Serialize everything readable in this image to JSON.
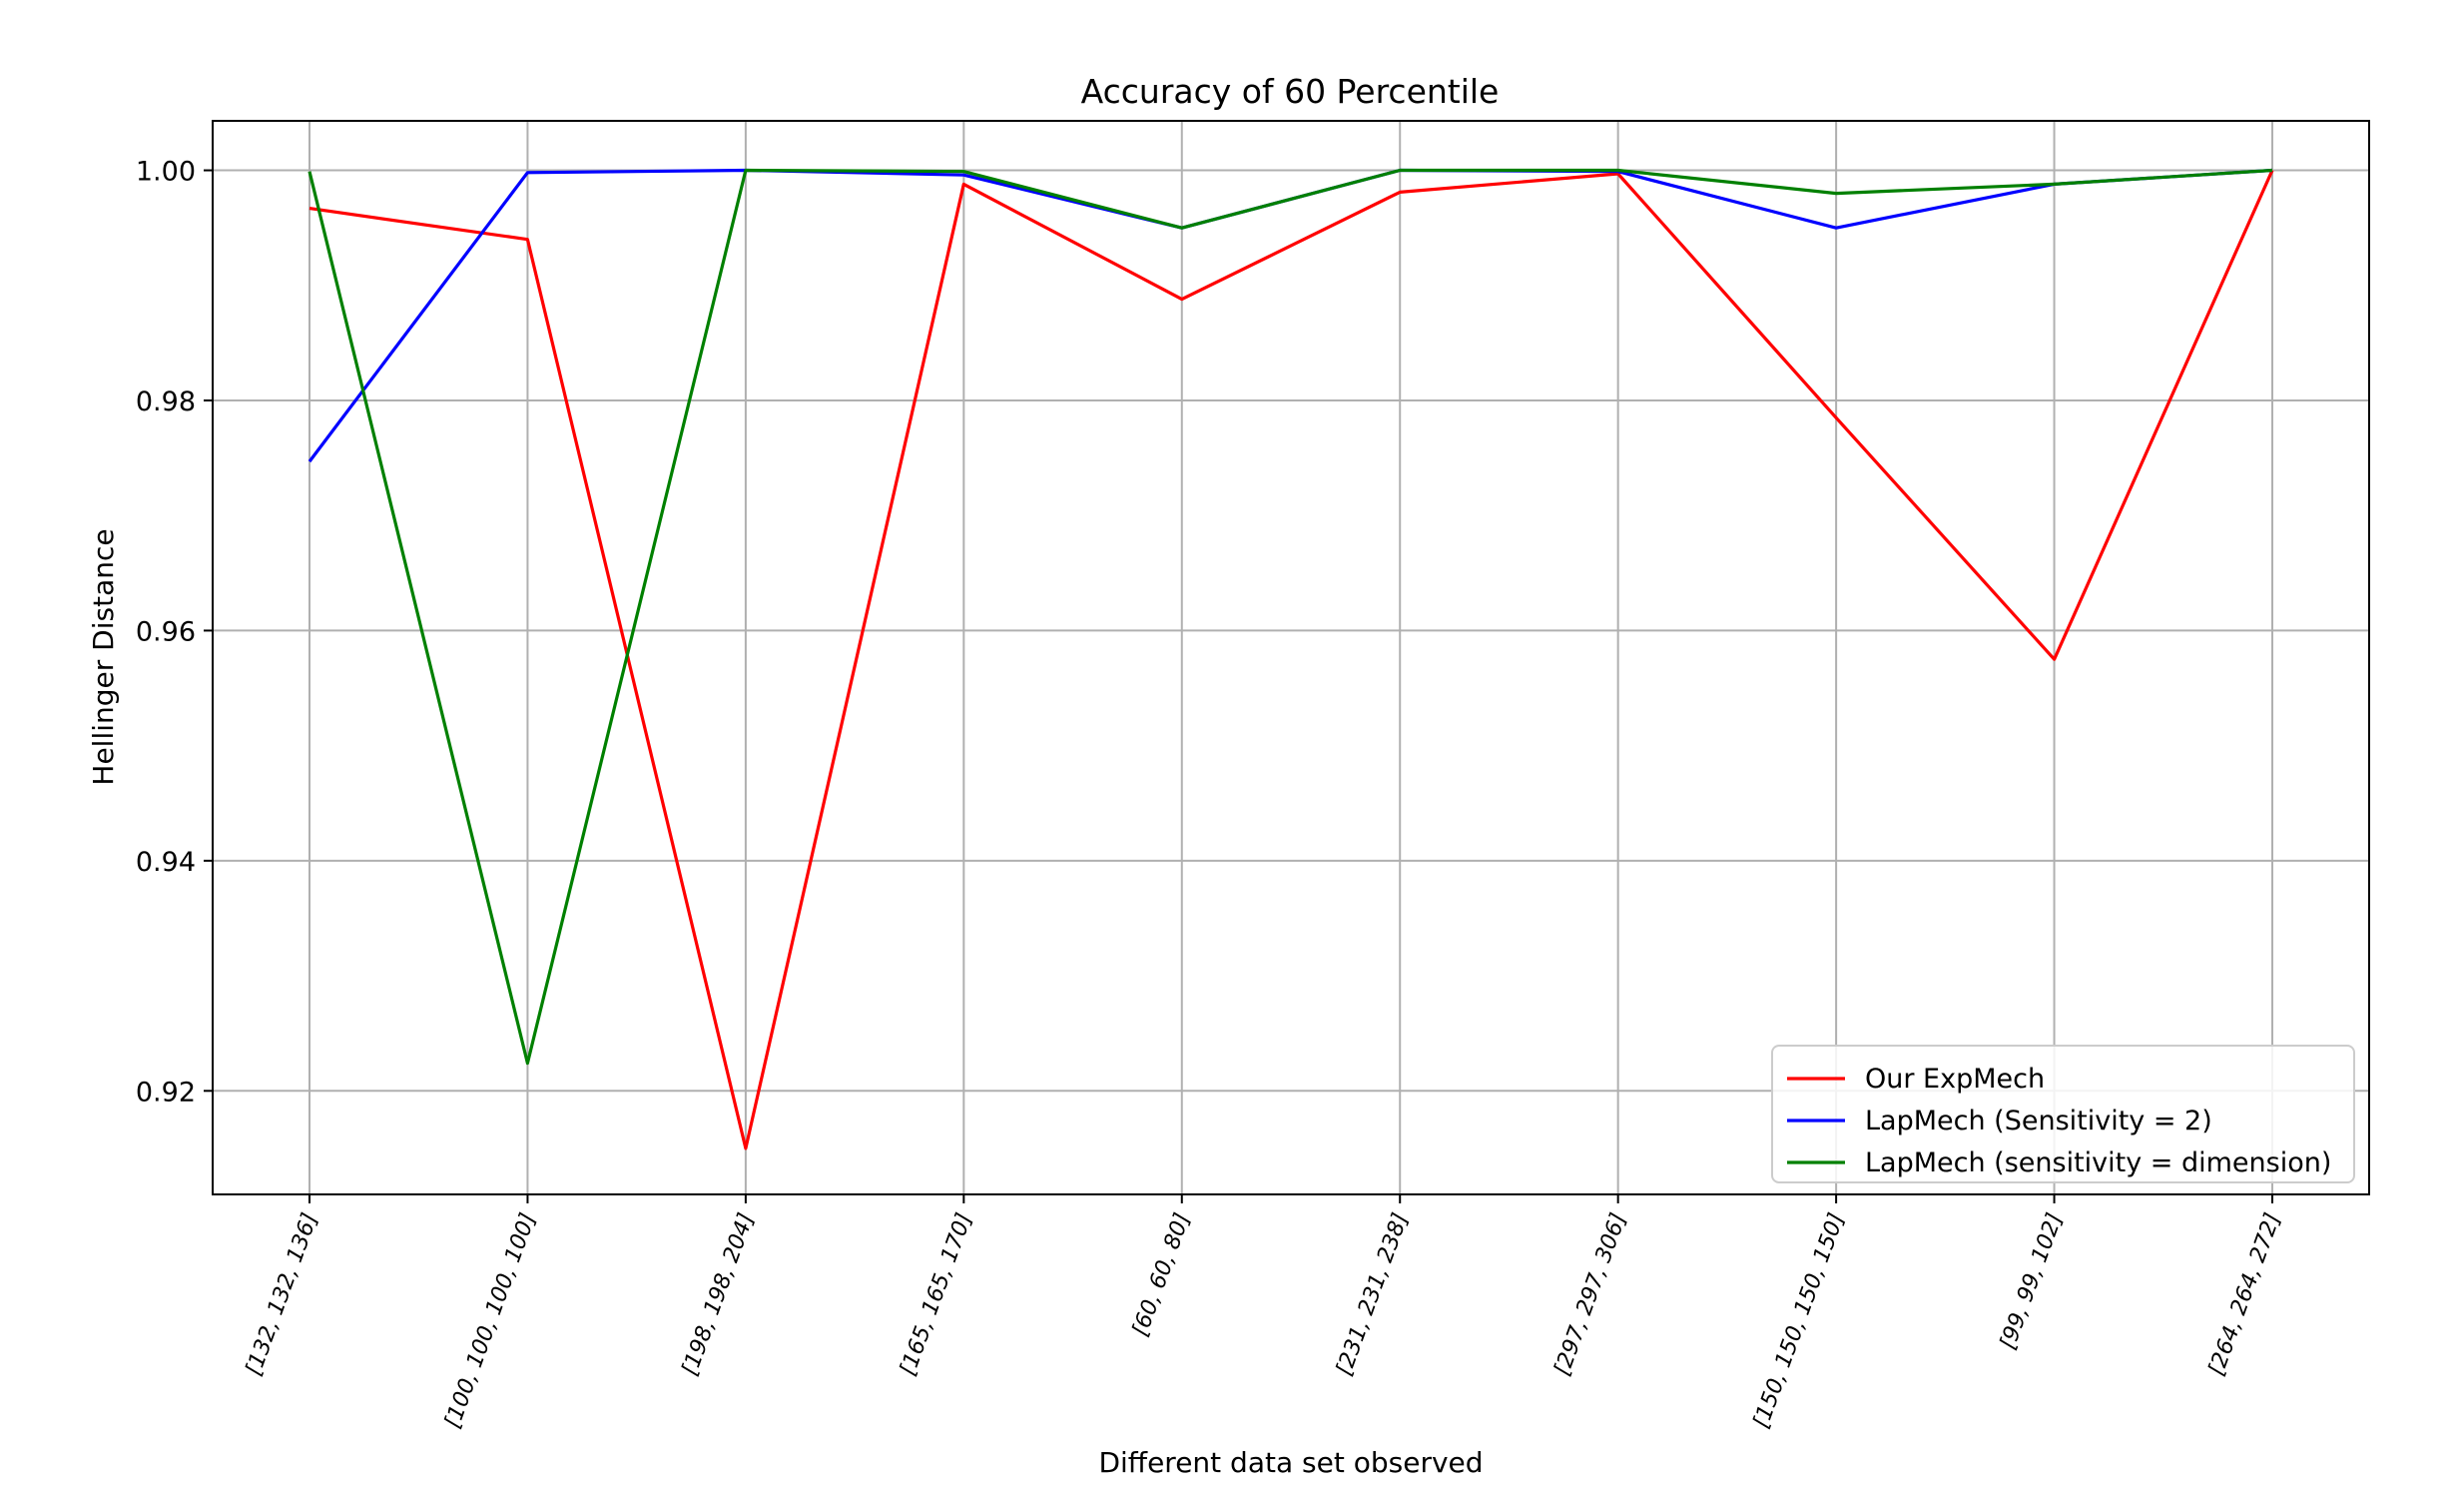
{
  "chart_data": {
    "type": "line",
    "title": "Accuracy of 60 Percentile",
    "xlabel": "Different data set observed",
    "ylabel": "Hellinger Distance",
    "categories": [
      "[132, 132, 136]",
      "[100, 100, 100, 100]",
      "[198, 198, 204]",
      "[165, 165, 170]",
      "[60, 60, 80]",
      "[231, 231, 238]",
      "[297, 297, 306]",
      "[150, 150, 150, 150]",
      "[99, 99, 102]",
      "[264, 264, 272]"
    ],
    "ylim": [
      0.911,
      1.0043
    ],
    "yticks": [
      0.92,
      0.94,
      0.96,
      0.98,
      1.0
    ],
    "ytick_labels": [
      "0.92",
      "0.94",
      "0.96",
      "0.98",
      "1.00"
    ],
    "grid": true,
    "legend_position": "lower-right",
    "series": [
      {
        "name": "Our ExpMech",
        "color": "#ff0000",
        "values": [
          0.9967,
          0.994,
          0.915,
          0.9988,
          0.9888,
          0.9981,
          0.9997,
          0.9785,
          0.9575,
          1.0
        ]
      },
      {
        "name": "LapMech (Sensitivity = 2)",
        "color": "#0000ff",
        "values": [
          0.9747,
          0.9998,
          1.0,
          0.9996,
          0.995,
          1.0,
          0.9999,
          0.995,
          0.9988,
          1.0
        ]
      },
      {
        "name": "LapMech (sensitivity = dimension)",
        "color": "#008000",
        "values": [
          0.9999,
          0.9224,
          1.0,
          0.9999,
          0.995,
          1.0,
          1.0,
          0.998,
          0.9988,
          1.0
        ]
      }
    ]
  }
}
